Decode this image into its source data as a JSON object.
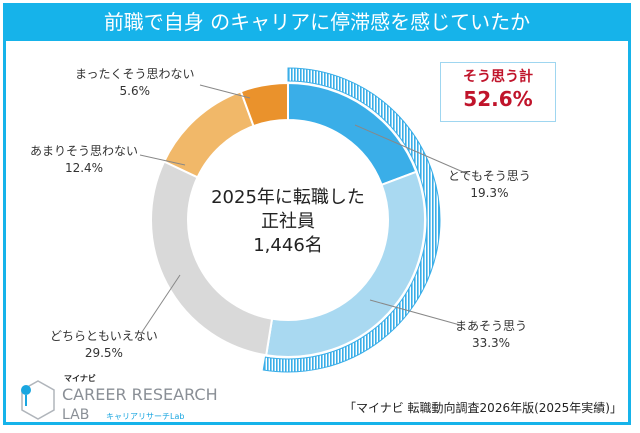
{
  "title": "前職で自身 のキャリアに停滞感を感じていたか",
  "chart_data": {
    "type": "pie",
    "title": "前職で自身 のキャリアに停滞感を感じていたか",
    "categories": [
      "とてもそう思う",
      "まあそう思う",
      "どちらともいえない",
      "あまりそう思わない",
      "まったくそう思わない"
    ],
    "values": [
      19.3,
      33.3,
      29.5,
      12.4,
      5.6
    ],
    "value_labels": [
      "19.3%",
      "33.3%",
      "29.5%",
      "12.4%",
      "5.6%"
    ],
    "colors": [
      "#3aaee8",
      "#a9d9f1",
      "#d9d9d9",
      "#f1b869",
      "#ea922c"
    ],
    "donut": true,
    "center_text": [
      "2025年に転職した",
      "正社員",
      "1,446名"
    ],
    "summary": {
      "label": "そう思う計",
      "value": "52.6%",
      "value_num": 52.6,
      "color": "#c0142b"
    }
  },
  "source": "「マイナビ 転職動向調査2026年版(2025年実績)」",
  "logo": {
    "brand": "マイナビ",
    "name": "CAREER RESEARCH",
    "name2": "LAB",
    "sub": "キャリアリサーチLab"
  }
}
